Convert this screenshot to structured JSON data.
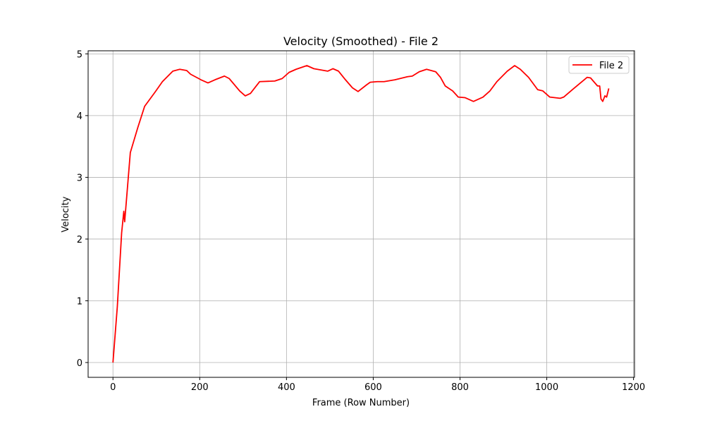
{
  "chart_data": {
    "type": "line",
    "title": "Velocity (Smoothed) - File 2",
    "xlabel": "Frame (Row Number)",
    "ylabel": "Velocity",
    "x": [
      0,
      10,
      20,
      25,
      27,
      40,
      57,
      73,
      97,
      114,
      138,
      154,
      170,
      179,
      203,
      219,
      235,
      257,
      268,
      292,
      305,
      317,
      338,
      373,
      390,
      406,
      422,
      447,
      463,
      495,
      507,
      520,
      536,
      552,
      565,
      585,
      593,
      609,
      625,
      650,
      679,
      690,
      706,
      723,
      744,
      755,
      766,
      783,
      796,
      812,
      831,
      853,
      869,
      885,
      909,
      926,
      939,
      958,
      979,
      991,
      1007,
      1031,
      1039,
      1064,
      1093,
      1101,
      1117,
      1122,
      1125,
      1129,
      1134,
      1138,
      1143
    ],
    "series": [
      {
        "name": "File 2",
        "color": "#ff0000",
        "values": [
          0,
          0.9,
          2.1,
          2.45,
          2.28,
          3.4,
          3.8,
          4.15,
          4.38,
          4.55,
          4.72,
          4.75,
          4.73,
          4.67,
          4.58,
          4.53,
          4.58,
          4.64,
          4.6,
          4.4,
          4.32,
          4.36,
          4.55,
          4.56,
          4.6,
          4.7,
          4.75,
          4.81,
          4.76,
          4.72,
          4.76,
          4.72,
          4.58,
          4.45,
          4.39,
          4.5,
          4.54,
          4.55,
          4.55,
          4.58,
          4.63,
          4.64,
          4.71,
          4.75,
          4.71,
          4.62,
          4.48,
          4.4,
          4.3,
          4.29,
          4.23,
          4.3,
          4.4,
          4.55,
          4.72,
          4.81,
          4.75,
          4.62,
          4.42,
          4.4,
          4.3,
          4.28,
          4.3,
          4.45,
          4.62,
          4.61,
          4.48,
          4.48,
          4.27,
          4.23,
          4.32,
          4.3,
          4.44
        ]
      }
    ],
    "xlim": [
      -57.25,
      1202.25
    ],
    "ylim": [
      -0.24,
      5.05
    ],
    "xticks": [
      0,
      200,
      400,
      600,
      800,
      1000,
      1200
    ],
    "yticks": [
      0,
      1,
      2,
      3,
      4,
      5
    ],
    "grid": true,
    "legend": "upper right"
  }
}
